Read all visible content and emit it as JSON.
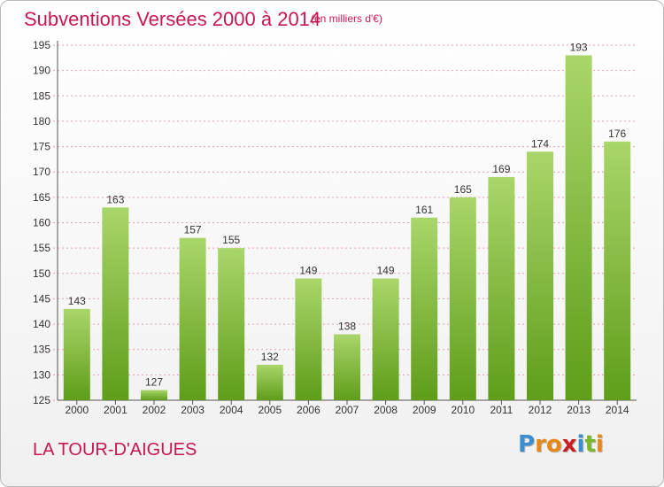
{
  "header": {
    "title": "Subventions Versées 2000 à 2014",
    "unit": "(en milliers d'€)"
  },
  "footer": {
    "commune": "LA TOUR-D'AIGUES",
    "logo_letters": [
      "P",
      "r",
      "o",
      "x",
      "i",
      "t",
      "i"
    ]
  },
  "colors": {
    "accent": "#c8174f",
    "bar_top": "#a9d66a",
    "bar_bottom": "#5f9d1a",
    "grid": "#e4a0b6"
  },
  "chart_data": {
    "type": "bar",
    "title": "Subventions Versées 2000 à 2014",
    "subtitle": "(en milliers d'€)",
    "xlabel": "",
    "ylabel": "",
    "categories": [
      "2000",
      "2001",
      "2002",
      "2003",
      "2004",
      "2005",
      "2006",
      "2007",
      "2008",
      "2009",
      "2010",
      "2011",
      "2012",
      "2013",
      "2014"
    ],
    "values": [
      143,
      163,
      127,
      157,
      155,
      132,
      149,
      138,
      149,
      161,
      165,
      169,
      174,
      193,
      176
    ],
    "ylim": [
      125,
      195
    ],
    "yticks": [
      125,
      130,
      135,
      140,
      145,
      150,
      155,
      160,
      165,
      170,
      175,
      180,
      185,
      190,
      195
    ],
    "grid": true,
    "data_labels": true
  }
}
